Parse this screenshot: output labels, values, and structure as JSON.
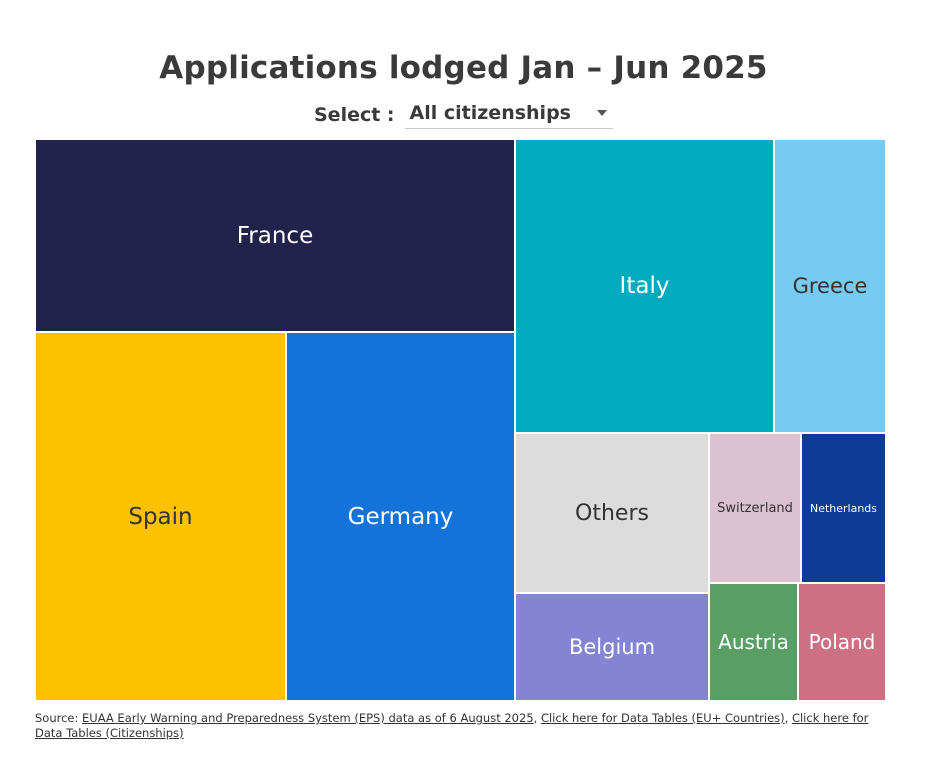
{
  "chart_data": {
    "type": "treemap",
    "title": "Applications lodged Jan – Jun 2025",
    "selector": {
      "label": "Select :",
      "selected": "All citizenships"
    },
    "tiles": [
      {
        "name": "France",
        "color": "#23224b",
        "text_color": "#ffffff"
      },
      {
        "name": "Spain",
        "color": "#fcc200",
        "text_color": "#333333"
      },
      {
        "name": "Germany",
        "color": "#1473d9",
        "text_color": "#ffffff"
      },
      {
        "name": "Italy",
        "color": "#00aabf",
        "text_color": "#ffffff"
      },
      {
        "name": "Greece",
        "color": "#77caf2",
        "text_color": "#333333"
      },
      {
        "name": "Others",
        "color": "#dcdcdc",
        "text_color": "#333333"
      },
      {
        "name": "Switzerland",
        "color": "#dcc1d1",
        "text_color": "#333333"
      },
      {
        "name": "Netherlands",
        "color": "#0e3b96",
        "text_color": "#ffffff"
      },
      {
        "name": "Belgium",
        "color": "#8483d4",
        "text_color": "#ffffff"
      },
      {
        "name": "Austria",
        "color": "#589e65",
        "text_color": "#ffffff"
      },
      {
        "name": "Poland",
        "color": "#cd7083",
        "text_color": "#ffffff"
      }
    ]
  },
  "source": {
    "prefix": "Source: ",
    "link1": "EUAA Early Warning and Preparedness System (EPS) data as of 6 August 2025",
    "sep1": ", ",
    "link2": "Click here for Data Tables (EU+ Countries)",
    "sep2": ", ",
    "link3": "Click here for Data Tables (Citizenships)"
  }
}
